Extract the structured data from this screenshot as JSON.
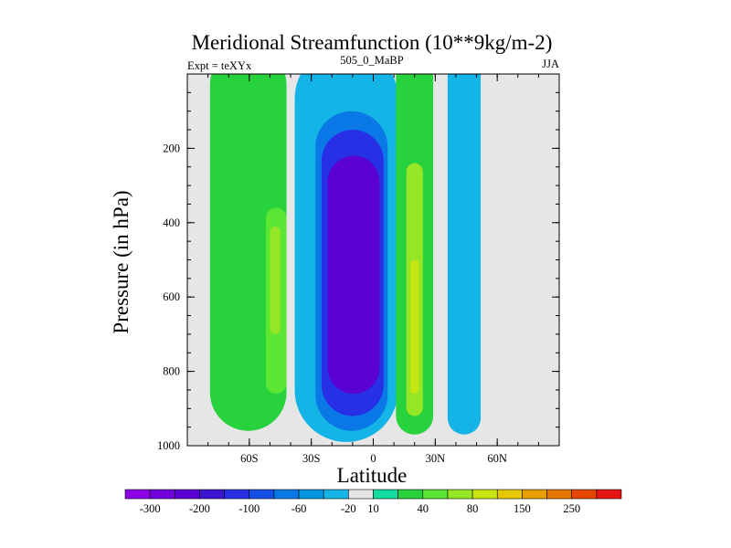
{
  "chart_data": {
    "type": "heatmap",
    "title": "Meridional Streamfunction (10**9kg/m-2)",
    "subtitle_left": "Expt = teXYx",
    "subtitle_center": "505_0_MaBP",
    "subtitle_right": "JJA",
    "xlabel": "Latitude",
    "ylabel": "Pressure (in hPa)",
    "xlim": [
      -90,
      90
    ],
    "ylim": [
      1000,
      0
    ],
    "x_ticks": [
      {
        "value": -60,
        "label": "60S"
      },
      {
        "value": -30,
        "label": "30S"
      },
      {
        "value": 0,
        "label": "0"
      },
      {
        "value": 30,
        "label": "30N"
      },
      {
        "value": 60,
        "label": "60N"
      }
    ],
    "y_ticks": [
      {
        "value": 200,
        "label": "200"
      },
      {
        "value": 400,
        "label": "400"
      },
      {
        "value": 600,
        "label": "600"
      },
      {
        "value": 800,
        "label": "800"
      },
      {
        "value": 1000,
        "label": "1000"
      }
    ],
    "background_color": "#e6e6e6",
    "colorbar": {
      "colors": [
        "#8c00e6",
        "#7000dc",
        "#5a00d2",
        "#3c14d2",
        "#2830e6",
        "#1450e6",
        "#0a78e6",
        "#0096e0",
        "#14b4e6",
        "#e6e6e6",
        "#14dca0",
        "#28d23c",
        "#5ae632",
        "#96e628",
        "#c8e614",
        "#e6c800",
        "#e6a000",
        "#e67800",
        "#e64600",
        "#e61414"
      ],
      "labels": [
        {
          "after_index": 0,
          "text": "-300"
        },
        {
          "after_index": 2,
          "text": "-200"
        },
        {
          "after_index": 4,
          "text": "-100"
        },
        {
          "after_index": 6,
          "text": "-60"
        },
        {
          "after_index": 8,
          "text": "-20"
        },
        {
          "after_index": 9,
          "text": "10"
        },
        {
          "after_index": 11,
          "text": "40"
        },
        {
          "after_index": 13,
          "text": "80"
        },
        {
          "after_index": 15,
          "text": "150"
        },
        {
          "after_index": 17,
          "text": "250"
        }
      ]
    },
    "features": [
      {
        "name": "southern-outer-cell",
        "fill": "#28d23c",
        "lat_range": [
          -79,
          -42
        ],
        "p_range": [
          0,
          960
        ],
        "core_value": 60
      },
      {
        "name": "southern-core",
        "fill": "#5ae632",
        "lat_range": [
          -52,
          -42
        ],
        "p_range": [
          360,
          860
        ],
        "core_value": 80
      },
      {
        "name": "southern-inner-core",
        "fill": "#96e628",
        "lat_range": [
          -50,
          -45
        ],
        "p_range": [
          410,
          700
        ],
        "core_value": 100
      },
      {
        "name": "hadley-cell-negative",
        "fill": "#14b4e6",
        "lat_range": [
          -38,
          12
        ],
        "p_range": [
          0,
          990
        ],
        "core_value": -20
      },
      {
        "name": "hadley-mid",
        "fill": "#0a78e6",
        "lat_range": [
          -28,
          7
        ],
        "p_range": [
          100,
          960
        ],
        "core_value": -60
      },
      {
        "name": "hadley-core",
        "fill": "#2830e6",
        "lat_range": [
          -25,
          5
        ],
        "p_range": [
          150,
          920
        ],
        "core_value": -100
      },
      {
        "name": "hadley-center",
        "fill": "#5a00d2",
        "lat_range": [
          -22,
          3
        ],
        "p_range": [
          220,
          860
        ],
        "core_value": -200
      },
      {
        "name": "northern-cell-positive",
        "fill": "#28d23c",
        "lat_range": [
          11,
          29
        ],
        "p_range": [
          0,
          970
        ],
        "core_value": 40
      },
      {
        "name": "northern-core",
        "fill": "#96e628",
        "lat_range": [
          16,
          24
        ],
        "p_range": [
          240,
          920
        ],
        "core_value": 80
      },
      {
        "name": "northern-center",
        "fill": "#c8e614",
        "lat_range": [
          18,
          22
        ],
        "p_range": [
          500,
          860
        ],
        "core_value": 150
      },
      {
        "name": "northern-outer-cell",
        "fill": "#14b4e6",
        "lat_range": [
          36,
          52
        ],
        "p_range": [
          0,
          970
        ],
        "core_value": -20
      }
    ]
  }
}
